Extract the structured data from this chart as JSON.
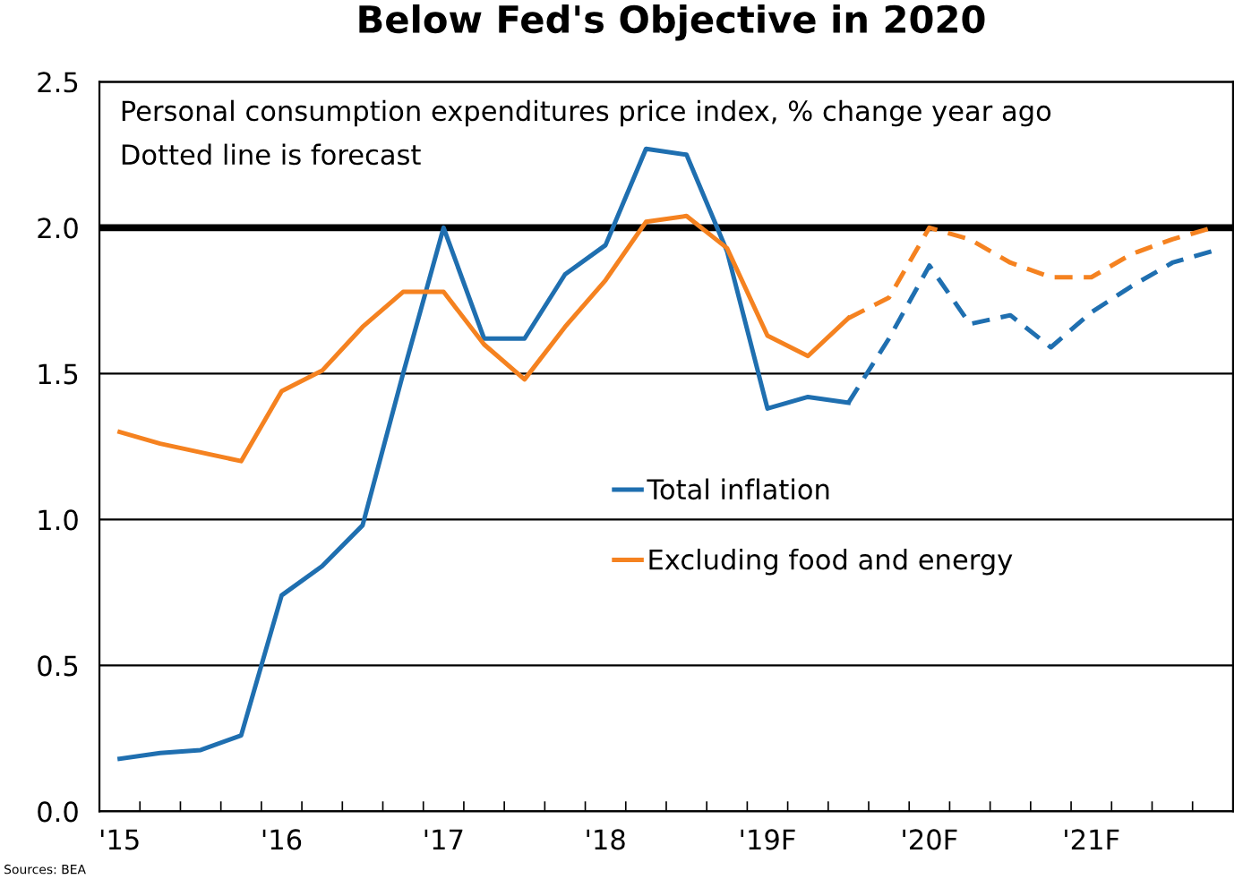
{
  "chart_data": {
    "type": "line",
    "title": "Below Fed's Objective in 2020",
    "annotations": [
      "Personal consumption expenditures price index, % change year ago",
      "Dotted line is forecast",
      "Sources: BEA"
    ],
    "categories": [
      "'15",
      null,
      null,
      null,
      "'16",
      null,
      null,
      null,
      "'17",
      null,
      null,
      null,
      "'18",
      null,
      null,
      null,
      "'19F",
      null,
      null,
      null,
      "'20F",
      null,
      null,
      null,
      "'21F",
      null,
      null,
      null
    ],
    "series": [
      {
        "name": "Total inflation",
        "color": "#1f6fb0",
        "line_style": "solid",
        "values": [
          0.18,
          0.2,
          0.21,
          0.26,
          0.74,
          0.84,
          0.98,
          1.5,
          2.0,
          1.62,
          1.62,
          1.84,
          1.94,
          2.27,
          2.25,
          1.92,
          1.38,
          1.42,
          1.4,
          null,
          null,
          null,
          null,
          null,
          null,
          null,
          null,
          null
        ]
      },
      {
        "name": "Excluding food and energy",
        "color": "#f58220",
        "line_style": "solid",
        "values": [
          1.3,
          1.26,
          1.23,
          1.2,
          1.44,
          1.51,
          1.66,
          1.78,
          1.78,
          1.6,
          1.48,
          1.66,
          1.82,
          2.02,
          2.04,
          1.93,
          1.63,
          1.56,
          1.69,
          null,
          null,
          null,
          null,
          null,
          null,
          null,
          null,
          null
        ]
      },
      {
        "color": "#1f6fb0",
        "line_style": "dashed",
        "values": [
          null,
          null,
          null,
          null,
          null,
          null,
          null,
          null,
          null,
          null,
          null,
          null,
          null,
          null,
          null,
          null,
          null,
          null,
          1.4,
          1.62,
          1.87,
          1.67,
          1.7,
          1.59,
          1.71,
          1.8,
          1.88,
          1.92
        ]
      },
      {
        "color": "#f58220",
        "line_style": "dashed",
        "values": [
          null,
          null,
          null,
          null,
          null,
          null,
          null,
          null,
          null,
          null,
          null,
          null,
          null,
          null,
          null,
          null,
          null,
          null,
          1.69,
          1.76,
          2.0,
          1.96,
          1.88,
          1.83,
          1.83,
          1.91,
          1.96,
          2.0
        ]
      }
    ],
    "ylim": [
      0,
      2.5
    ],
    "yticks": [
      {
        "value": 0,
        "label": "0.0"
      },
      {
        "value": 0.5,
        "label": "0.5"
      },
      {
        "value": 1.0,
        "label": "1.0"
      },
      {
        "value": 1.5,
        "label": "1.5"
      },
      {
        "value": 2.0,
        "label": "2.0"
      },
      {
        "value": 2.5,
        "label": "2.5"
      }
    ],
    "ref_lines": [
      {
        "axis": "y",
        "value": 2.0,
        "label": null,
        "color": "#000000"
      }
    ],
    "grid": "y",
    "legend": "center",
    "marker": "none"
  }
}
